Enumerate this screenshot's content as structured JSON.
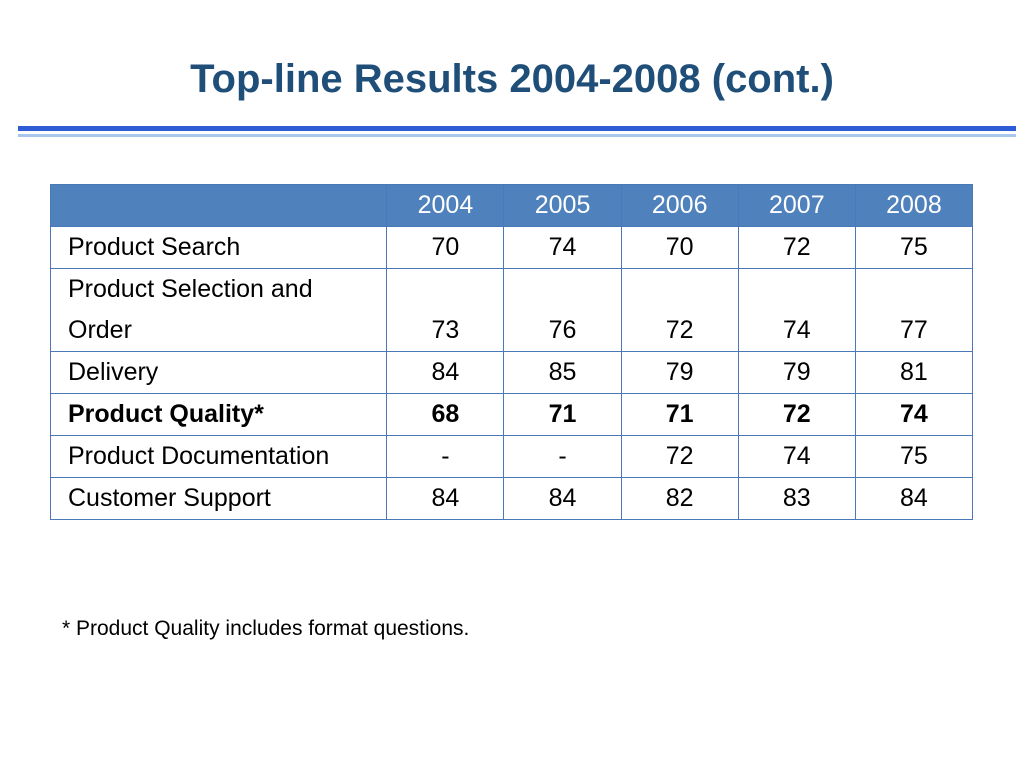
{
  "title": "Top-line Results 2004-2008 (cont.)",
  "table": {
    "columns": [
      "",
      "2004",
      "2005",
      "2006",
      "2007",
      "2008"
    ],
    "rows": [
      {
        "label": "Product Search",
        "values": [
          "70",
          "74",
          "70",
          "72",
          "75"
        ],
        "bold": false
      },
      {
        "label": "Product Selection and Order",
        "values": [
          "73",
          "76",
          "72",
          "74",
          "77"
        ],
        "bold": false
      },
      {
        "label": "Delivery",
        "values": [
          "84",
          "85",
          "79",
          "79",
          "81"
        ],
        "bold": false
      },
      {
        "label": "Product Quality*",
        "values": [
          "68",
          "71",
          "71",
          "72",
          "74"
        ],
        "bold": true
      },
      {
        "label": "Product Documentation",
        "values": [
          "-",
          "-",
          "72",
          "74",
          "75"
        ],
        "bold": false
      },
      {
        "label": "Customer Support",
        "values": [
          "84",
          "84",
          "82",
          "83",
          "84"
        ],
        "bold": false
      }
    ]
  },
  "footnote": "* Product Quality includes format questions.",
  "colors": {
    "title": "#1f4e79",
    "header_bg": "#4f81bd",
    "rule_thick": "#2e5cd6",
    "rule_thin": "#a9c6ec"
  }
}
